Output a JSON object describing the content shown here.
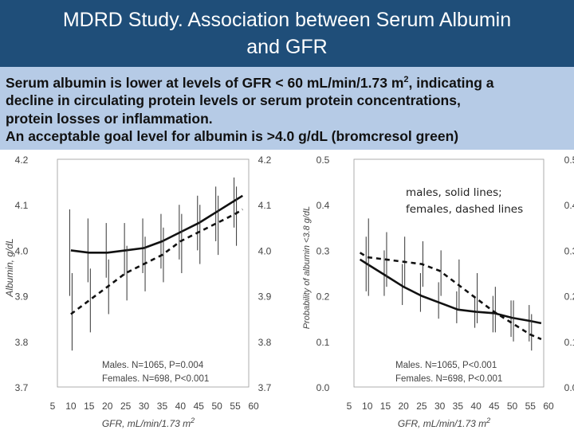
{
  "title": {
    "line1": "MDRD Study. Association between  Serum Albumin",
    "line2": "and GFR"
  },
  "caption": {
    "line1_pre": "Serum albumin is lower at levels of GFR < 60 mL/min/1.73 m",
    "line1_sup": "2",
    "line1_post": ", indicating a",
    "line2": "decline in circulating protein levels or serum protein concentrations,",
    "line3": "protein losses or inflammation.",
    "line4": "An acceptable goal level for albumin is >4.0 g/dL (bromcresol green)"
  },
  "annotation": {
    "line1": "males, solid lines;",
    "line2": "females, dashed lines"
  },
  "colors": {
    "title_bg": "#1f4e79",
    "caption_bg": "#b6cbe6",
    "lines": "#111111"
  },
  "chart_data": [
    {
      "type": "line",
      "xlabel": "GFR, mL/min/1.73 m",
      "xlabel_sup": "2",
      "ylabel": "Albumin, g/dL",
      "x": [
        5,
        10,
        15,
        20,
        25,
        30,
        35,
        40,
        45,
        50,
        55,
        60
      ],
      "xlim": [
        5,
        60
      ],
      "ylim": [
        3.7,
        4.2
      ],
      "yticks": [
        "4.2",
        "4.1",
        "4.0",
        "3.9",
        "3.8",
        "3.7"
      ],
      "series": [
        {
          "name": "Males",
          "style": "solid",
          "curve_x": [
            10,
            15,
            20,
            25,
            30,
            35,
            40,
            45,
            50,
            55,
            57
          ],
          "curve_y": [
            4.0,
            3.995,
            3.995,
            4.0,
            4.005,
            4.02,
            4.04,
            4.06,
            4.085,
            4.11,
            4.12
          ],
          "bars_x": [
            10,
            15,
            20,
            25,
            30,
            35,
            40,
            45,
            50,
            55
          ],
          "bars_low": [
            3.9,
            3.93,
            3.94,
            3.945,
            3.95,
            3.96,
            3.98,
            4.0,
            4.02,
            4.05
          ],
          "bars_high": [
            4.09,
            4.07,
            4.06,
            4.06,
            4.07,
            4.08,
            4.1,
            4.12,
            4.14,
            4.16
          ]
        },
        {
          "name": "Females",
          "style": "dashed",
          "curve_x": [
            10,
            15,
            20,
            25,
            30,
            35,
            40,
            45,
            50,
            55,
            57
          ],
          "curve_y": [
            3.86,
            3.89,
            3.92,
            3.95,
            3.97,
            3.99,
            4.02,
            4.04,
            4.06,
            4.08,
            4.09
          ],
          "bars_x": [
            10,
            15,
            20,
            25,
            30,
            35,
            40,
            45,
            50,
            55
          ],
          "bars_low": [
            3.78,
            3.82,
            3.86,
            3.89,
            3.91,
            3.93,
            3.95,
            3.97,
            3.99,
            4.01
          ],
          "bars_high": [
            3.95,
            3.96,
            3.98,
            4.01,
            4.03,
            4.05,
            4.08,
            4.1,
            4.12,
            4.14
          ]
        }
      ],
      "annotations": [
        "Males. N=1065, P=0.004",
        "Females. N=698, P<0.001"
      ]
    },
    {
      "type": "line",
      "xlabel": "GFR, mL/min/1.73 m",
      "xlabel_sup": "2",
      "ylabel": "Probability of albumin <3.8 g/dL",
      "x": [
        5,
        10,
        15,
        20,
        25,
        30,
        35,
        40,
        45,
        50,
        55,
        60
      ],
      "xlim": [
        5,
        60
      ],
      "ylim": [
        0.0,
        0.5
      ],
      "yticks": [
        "0.5",
        "0.4",
        "0.3",
        "0.2",
        "0.1",
        "0.0"
      ],
      "series": [
        {
          "name": "Males",
          "style": "solid",
          "curve_x": [
            8,
            10,
            15,
            20,
            25,
            30,
            35,
            40,
            45,
            50,
            55,
            58
          ],
          "curve_y": [
            0.28,
            0.27,
            0.245,
            0.22,
            0.2,
            0.185,
            0.17,
            0.165,
            0.162,
            0.152,
            0.145,
            0.14
          ],
          "bars_x": [
            10,
            15,
            20,
            25,
            30,
            35,
            40,
            45,
            50,
            55
          ],
          "bars_low": [
            0.21,
            0.2,
            0.18,
            0.165,
            0.15,
            0.14,
            0.13,
            0.12,
            0.11,
            0.1
          ],
          "bars_high": [
            0.33,
            0.3,
            0.27,
            0.25,
            0.23,
            0.21,
            0.2,
            0.2,
            0.19,
            0.18
          ]
        },
        {
          "name": "Females",
          "style": "dashed",
          "curve_x": [
            8,
            10,
            15,
            20,
            25,
            30,
            35,
            40,
            45,
            50,
            55,
            58
          ],
          "curve_y": [
            0.295,
            0.285,
            0.28,
            0.275,
            0.27,
            0.255,
            0.225,
            0.195,
            0.165,
            0.14,
            0.115,
            0.105
          ],
          "bars_x": [
            10,
            15,
            20,
            25,
            30,
            35,
            40,
            45,
            50,
            55
          ],
          "bars_low": [
            0.2,
            0.22,
            0.22,
            0.22,
            0.2,
            0.17,
            0.14,
            0.12,
            0.1,
            0.08
          ],
          "bars_high": [
            0.37,
            0.34,
            0.33,
            0.32,
            0.3,
            0.28,
            0.25,
            0.22,
            0.19,
            0.16
          ]
        }
      ],
      "annotations": [
        "Males. N=1065, P<0.001",
        "Females. N=698, P<0.001"
      ]
    }
  ]
}
